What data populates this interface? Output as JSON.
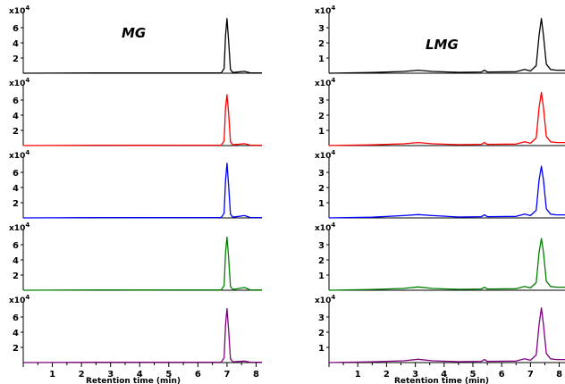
{
  "chart_data": [
    {
      "type": "line",
      "title": "MG",
      "xlabel": "Retention time (min)",
      "ylabel": "",
      "y_multiplier": "x10^4",
      "xlim": [
        0,
        8.2
      ],
      "ylim": [
        0,
        8
      ],
      "x_ticks": [
        1,
        2,
        3,
        4,
        5,
        6,
        7,
        8
      ],
      "y_ticks": [
        2,
        4,
        6
      ],
      "series": [
        {
          "color": "#000000",
          "points": [
            [
              0,
              0
            ],
            [
              2.5,
              0.05
            ],
            [
              4,
              0.04
            ],
            [
              5.5,
              0.05
            ],
            [
              6.8,
              0.05
            ],
            [
              6.9,
              0.6
            ],
            [
              6.95,
              5.0
            ],
            [
              7.0,
              7.2
            ],
            [
              7.05,
              4.5
            ],
            [
              7.12,
              0.5
            ],
            [
              7.2,
              0.1
            ],
            [
              7.6,
              0.25
            ],
            [
              7.8,
              0.05
            ],
            [
              8.2,
              0.05
            ]
          ]
        },
        {
          "color": "#ff0000",
          "points": [
            [
              0,
              0
            ],
            [
              2.5,
              0.05
            ],
            [
              4,
              0.04
            ],
            [
              5.5,
              0.05
            ],
            [
              6.8,
              0.05
            ],
            [
              6.9,
              0.6
            ],
            [
              6.95,
              5.0
            ],
            [
              7.0,
              6.7
            ],
            [
              7.05,
              4.5
            ],
            [
              7.12,
              0.5
            ],
            [
              7.2,
              0.1
            ],
            [
              7.6,
              0.25
            ],
            [
              7.8,
              0.05
            ],
            [
              8.2,
              0.05
            ]
          ]
        },
        {
          "color": "#0000ff",
          "points": [
            [
              0,
              0
            ],
            [
              2.5,
              0.05
            ],
            [
              4,
              0.04
            ],
            [
              5.5,
              0.05
            ],
            [
              6.8,
              0.05
            ],
            [
              6.9,
              0.6
            ],
            [
              6.95,
              5.0
            ],
            [
              7.0,
              7.2
            ],
            [
              7.05,
              4.5
            ],
            [
              7.12,
              0.5
            ],
            [
              7.2,
              0.1
            ],
            [
              7.6,
              0.3
            ],
            [
              7.8,
              0.05
            ],
            [
              8.2,
              0.05
            ]
          ]
        },
        {
          "color": "#008000",
          "points": [
            [
              0,
              0
            ],
            [
              2.5,
              0.05
            ],
            [
              4,
              0.04
            ],
            [
              5.5,
              0.05
            ],
            [
              6.8,
              0.05
            ],
            [
              6.9,
              0.6
            ],
            [
              6.95,
              5.0
            ],
            [
              7.0,
              7.0
            ],
            [
              7.05,
              4.5
            ],
            [
              7.12,
              0.5
            ],
            [
              7.2,
              0.1
            ],
            [
              7.6,
              0.35
            ],
            [
              7.8,
              0.05
            ],
            [
              8.2,
              0.05
            ]
          ]
        },
        {
          "color": "#800080",
          "points": [
            [
              0,
              0
            ],
            [
              2.5,
              0.05
            ],
            [
              4,
              0.04
            ],
            [
              5.5,
              0.05
            ],
            [
              6.8,
              0.05
            ],
            [
              6.9,
              0.6
            ],
            [
              6.95,
              5.0
            ],
            [
              7.0,
              7.1
            ],
            [
              7.05,
              4.5
            ],
            [
              7.12,
              0.5
            ],
            [
              7.2,
              0.1
            ],
            [
              7.6,
              0.2
            ],
            [
              7.8,
              0.05
            ],
            [
              8.2,
              0.05
            ]
          ]
        }
      ]
    },
    {
      "type": "line",
      "title": "LMG",
      "xlabel": "Retention time (min)",
      "ylabel": "",
      "y_multiplier": "x10^4",
      "xlim": [
        0,
        8.2
      ],
      "ylim": [
        0,
        4
      ],
      "x_ticks": [
        1,
        2,
        3,
        4,
        5,
        6,
        7,
        8
      ],
      "y_ticks": [
        1,
        2,
        3
      ],
      "series": [
        {
          "color": "#000000",
          "points": [
            [
              0,
              0
            ],
            [
              1.5,
              0.05
            ],
            [
              2.6,
              0.12
            ],
            [
              3.1,
              0.2
            ],
            [
              3.6,
              0.12
            ],
            [
              4.5,
              0.06
            ],
            [
              5.3,
              0.08
            ],
            [
              5.4,
              0.2
            ],
            [
              5.5,
              0.08
            ],
            [
              6.5,
              0.1
            ],
            [
              6.8,
              0.25
            ],
            [
              7.0,
              0.15
            ],
            [
              7.2,
              0.5
            ],
            [
              7.3,
              2.5
            ],
            [
              7.38,
              3.6
            ],
            [
              7.45,
              2.5
            ],
            [
              7.55,
              0.6
            ],
            [
              7.7,
              0.25
            ],
            [
              7.9,
              0.2
            ],
            [
              8.2,
              0.2
            ]
          ]
        },
        {
          "color": "#ff0000",
          "points": [
            [
              0,
              0
            ],
            [
              1.5,
              0.05
            ],
            [
              2.6,
              0.12
            ],
            [
              3.1,
              0.2
            ],
            [
              3.6,
              0.12
            ],
            [
              4.5,
              0.06
            ],
            [
              5.3,
              0.08
            ],
            [
              5.4,
              0.2
            ],
            [
              5.5,
              0.08
            ],
            [
              6.5,
              0.1
            ],
            [
              6.8,
              0.25
            ],
            [
              7.0,
              0.15
            ],
            [
              7.2,
              0.5
            ],
            [
              7.3,
              2.5
            ],
            [
              7.38,
              3.5
            ],
            [
              7.45,
              2.5
            ],
            [
              7.55,
              0.6
            ],
            [
              7.7,
              0.25
            ],
            [
              7.9,
              0.2
            ],
            [
              8.2,
              0.2
            ]
          ]
        },
        {
          "color": "#0000ff",
          "points": [
            [
              0,
              0
            ],
            [
              1.5,
              0.05
            ],
            [
              2.6,
              0.15
            ],
            [
              3.1,
              0.22
            ],
            [
              3.6,
              0.15
            ],
            [
              4.5,
              0.06
            ],
            [
              5.3,
              0.08
            ],
            [
              5.4,
              0.2
            ],
            [
              5.5,
              0.08
            ],
            [
              6.5,
              0.1
            ],
            [
              6.8,
              0.25
            ],
            [
              7.0,
              0.15
            ],
            [
              7.2,
              0.5
            ],
            [
              7.3,
              2.5
            ],
            [
              7.38,
              3.4
            ],
            [
              7.45,
              2.5
            ],
            [
              7.55,
              0.6
            ],
            [
              7.7,
              0.25
            ],
            [
              7.9,
              0.2
            ],
            [
              8.2,
              0.2
            ]
          ]
        },
        {
          "color": "#008000",
          "points": [
            [
              0,
              0
            ],
            [
              1.5,
              0.05
            ],
            [
              2.6,
              0.12
            ],
            [
              3.1,
              0.22
            ],
            [
              3.6,
              0.12
            ],
            [
              4.5,
              0.06
            ],
            [
              5.3,
              0.08
            ],
            [
              5.4,
              0.2
            ],
            [
              5.5,
              0.08
            ],
            [
              6.5,
              0.1
            ],
            [
              6.8,
              0.25
            ],
            [
              7.0,
              0.15
            ],
            [
              7.2,
              0.5
            ],
            [
              7.3,
              2.5
            ],
            [
              7.38,
              3.4
            ],
            [
              7.45,
              2.5
            ],
            [
              7.55,
              0.6
            ],
            [
              7.7,
              0.25
            ],
            [
              7.9,
              0.2
            ],
            [
              8.2,
              0.2
            ]
          ]
        },
        {
          "color": "#800080",
          "points": [
            [
              0,
              0
            ],
            [
              1.5,
              0.05
            ],
            [
              2.6,
              0.12
            ],
            [
              3.1,
              0.22
            ],
            [
              3.6,
              0.12
            ],
            [
              4.5,
              0.06
            ],
            [
              5.3,
              0.08
            ],
            [
              5.4,
              0.2
            ],
            [
              5.5,
              0.08
            ],
            [
              6.5,
              0.1
            ],
            [
              6.8,
              0.25
            ],
            [
              7.0,
              0.15
            ],
            [
              7.2,
              0.5
            ],
            [
              7.3,
              2.5
            ],
            [
              7.38,
              3.6
            ],
            [
              7.45,
              2.5
            ],
            [
              7.55,
              0.6
            ],
            [
              7.7,
              0.25
            ],
            [
              7.9,
              0.2
            ],
            [
              8.2,
              0.2
            ]
          ]
        }
      ]
    }
  ],
  "labels": {
    "left_title": "MG",
    "right_title": "LMG",
    "exp_base": "x10",
    "exp_power": "4",
    "xlabel_left": "Retention time (min)",
    "xlabel_right": "Retention time (min)"
  }
}
